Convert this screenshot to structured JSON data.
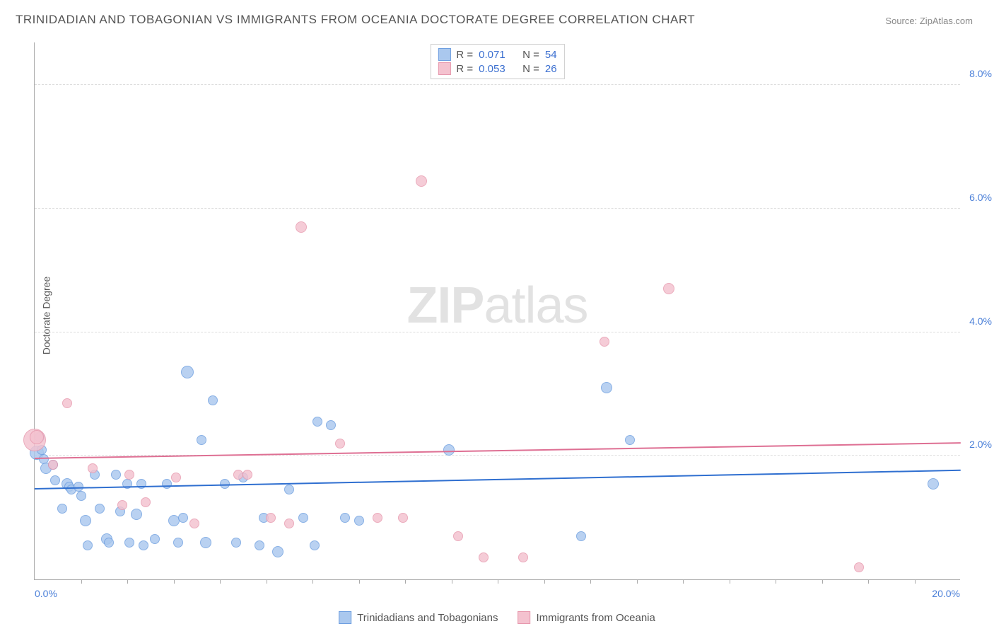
{
  "title": "TRINIDADIAN AND TOBAGONIAN VS IMMIGRANTS FROM OCEANIA DOCTORATE DEGREE CORRELATION CHART",
  "source_label": "Source:",
  "source_value": "ZipAtlas.com",
  "ylabel": "Doctorate Degree",
  "watermark_a": "ZIP",
  "watermark_b": "atlas",
  "chart": {
    "type": "scatter",
    "xlim": [
      0,
      20
    ],
    "ylim": [
      0,
      8.7
    ],
    "x_tick_left": "0.0%",
    "x_tick_right": "20.0%",
    "y_ticks": [
      {
        "v": 2.0,
        "label": "2.0%"
      },
      {
        "v": 4.0,
        "label": "4.0%"
      },
      {
        "v": 6.0,
        "label": "6.0%"
      },
      {
        "v": 8.0,
        "label": "8.0%"
      }
    ],
    "x_minor_ticks": [
      1,
      2,
      3,
      4,
      5,
      6,
      7,
      8,
      9,
      10,
      11,
      12,
      13,
      14,
      15,
      16,
      17,
      18,
      19
    ],
    "background_color": "#ffffff",
    "grid_color": "#dddddd",
    "axis_color": "#aaaaaa",
    "series": [
      {
        "name": "Trinidadians and Tobagonians",
        "fill": "#aac8ee",
        "stroke": "#6f9fe0",
        "trend_color": "#2f6fd0",
        "r_value": "0.071",
        "n_value": "54",
        "trend": {
          "y_at_x0": 1.45,
          "y_at_xmax": 1.75
        },
        "points": [
          {
            "x": 0.05,
            "y": 2.05,
            "r": 10
          },
          {
            "x": 0.1,
            "y": 2.3,
            "r": 7
          },
          {
            "x": 0.15,
            "y": 2.1,
            "r": 7
          },
          {
            "x": 0.2,
            "y": 1.95,
            "r": 7
          },
          {
            "x": 0.25,
            "y": 1.8,
            "r": 8
          },
          {
            "x": 0.4,
            "y": 1.85,
            "r": 7
          },
          {
            "x": 0.45,
            "y": 1.6,
            "r": 7
          },
          {
            "x": 0.6,
            "y": 1.15,
            "r": 7
          },
          {
            "x": 0.7,
            "y": 1.55,
            "r": 8
          },
          {
            "x": 0.75,
            "y": 1.5,
            "r": 7
          },
          {
            "x": 0.8,
            "y": 1.45,
            "r": 7
          },
          {
            "x": 0.95,
            "y": 1.5,
            "r": 7
          },
          {
            "x": 1.0,
            "y": 1.35,
            "r": 7
          },
          {
            "x": 1.1,
            "y": 0.95,
            "r": 8
          },
          {
            "x": 1.15,
            "y": 0.55,
            "r": 7
          },
          {
            "x": 1.3,
            "y": 1.7,
            "r": 7
          },
          {
            "x": 1.4,
            "y": 1.15,
            "r": 7
          },
          {
            "x": 1.55,
            "y": 0.65,
            "r": 8
          },
          {
            "x": 1.6,
            "y": 0.6,
            "r": 7
          },
          {
            "x": 1.75,
            "y": 1.7,
            "r": 7
          },
          {
            "x": 1.85,
            "y": 1.1,
            "r": 7
          },
          {
            "x": 2.0,
            "y": 1.55,
            "r": 7
          },
          {
            "x": 2.05,
            "y": 0.6,
            "r": 7
          },
          {
            "x": 2.2,
            "y": 1.05,
            "r": 8
          },
          {
            "x": 2.3,
            "y": 1.55,
            "r": 7
          },
          {
            "x": 2.35,
            "y": 0.55,
            "r": 7
          },
          {
            "x": 2.6,
            "y": 0.65,
            "r": 7
          },
          {
            "x": 2.85,
            "y": 1.55,
            "r": 7
          },
          {
            "x": 3.0,
            "y": 0.95,
            "r": 8
          },
          {
            "x": 3.1,
            "y": 0.6,
            "r": 7
          },
          {
            "x": 3.2,
            "y": 1.0,
            "r": 7
          },
          {
            "x": 3.3,
            "y": 3.35,
            "r": 9
          },
          {
            "x": 3.6,
            "y": 2.25,
            "r": 7
          },
          {
            "x": 3.7,
            "y": 0.6,
            "r": 8
          },
          {
            "x": 3.85,
            "y": 2.9,
            "r": 7
          },
          {
            "x": 4.1,
            "y": 1.55,
            "r": 7
          },
          {
            "x": 4.35,
            "y": 0.6,
            "r": 7
          },
          {
            "x": 4.5,
            "y": 1.65,
            "r": 7
          },
          {
            "x": 4.85,
            "y": 0.55,
            "r": 7
          },
          {
            "x": 4.95,
            "y": 1.0,
            "r": 7
          },
          {
            "x": 5.25,
            "y": 0.45,
            "r": 8
          },
          {
            "x": 5.5,
            "y": 1.45,
            "r": 7
          },
          {
            "x": 5.8,
            "y": 1.0,
            "r": 7
          },
          {
            "x": 6.05,
            "y": 0.55,
            "r": 7
          },
          {
            "x": 6.1,
            "y": 2.55,
            "r": 7
          },
          {
            "x": 6.4,
            "y": 2.5,
            "r": 7
          },
          {
            "x": 6.7,
            "y": 1.0,
            "r": 7
          },
          {
            "x": 7.0,
            "y": 0.95,
            "r": 7
          },
          {
            "x": 8.95,
            "y": 2.1,
            "r": 8
          },
          {
            "x": 11.8,
            "y": 0.7,
            "r": 7
          },
          {
            "x": 12.35,
            "y": 3.1,
            "r": 8
          },
          {
            "x": 12.85,
            "y": 2.25,
            "r": 7
          },
          {
            "x": 19.4,
            "y": 1.55,
            "r": 8
          }
        ]
      },
      {
        "name": "Immigrants from Oceania",
        "fill": "#f4c2cf",
        "stroke": "#e799ae",
        "trend_color": "#de6f93",
        "r_value": "0.053",
        "n_value": "26",
        "trend": {
          "y_at_x0": 1.95,
          "y_at_xmax": 2.2
        },
        "points": [
          {
            "x": 0.0,
            "y": 2.25,
            "r": 16
          },
          {
            "x": 0.05,
            "y": 2.3,
            "r": 10
          },
          {
            "x": 0.4,
            "y": 1.85,
            "r": 7
          },
          {
            "x": 0.7,
            "y": 2.85,
            "r": 7
          },
          {
            "x": 1.25,
            "y": 1.8,
            "r": 7
          },
          {
            "x": 1.9,
            "y": 1.2,
            "r": 7
          },
          {
            "x": 2.05,
            "y": 1.7,
            "r": 7
          },
          {
            "x": 2.4,
            "y": 1.25,
            "r": 7
          },
          {
            "x": 3.05,
            "y": 1.65,
            "r": 7
          },
          {
            "x": 3.45,
            "y": 0.9,
            "r": 7
          },
          {
            "x": 4.4,
            "y": 1.7,
            "r": 7
          },
          {
            "x": 4.6,
            "y": 1.7,
            "r": 7
          },
          {
            "x": 5.1,
            "y": 1.0,
            "r": 7
          },
          {
            "x": 5.5,
            "y": 0.9,
            "r": 7
          },
          {
            "x": 5.75,
            "y": 5.7,
            "r": 8
          },
          {
            "x": 6.6,
            "y": 2.2,
            "r": 7
          },
          {
            "x": 7.4,
            "y": 1.0,
            "r": 7
          },
          {
            "x": 7.95,
            "y": 1.0,
            "r": 7
          },
          {
            "x": 8.35,
            "y": 6.45,
            "r": 8
          },
          {
            "x": 9.15,
            "y": 0.7,
            "r": 7
          },
          {
            "x": 9.7,
            "y": 0.35,
            "r": 7
          },
          {
            "x": 10.55,
            "y": 0.35,
            "r": 7
          },
          {
            "x": 12.3,
            "y": 3.85,
            "r": 7
          },
          {
            "x": 13.7,
            "y": 4.7,
            "r": 8
          },
          {
            "x": 17.8,
            "y": 0.2,
            "r": 7
          }
        ]
      }
    ],
    "legend_r_label": "R  =",
    "legend_n_label": "N  ="
  }
}
